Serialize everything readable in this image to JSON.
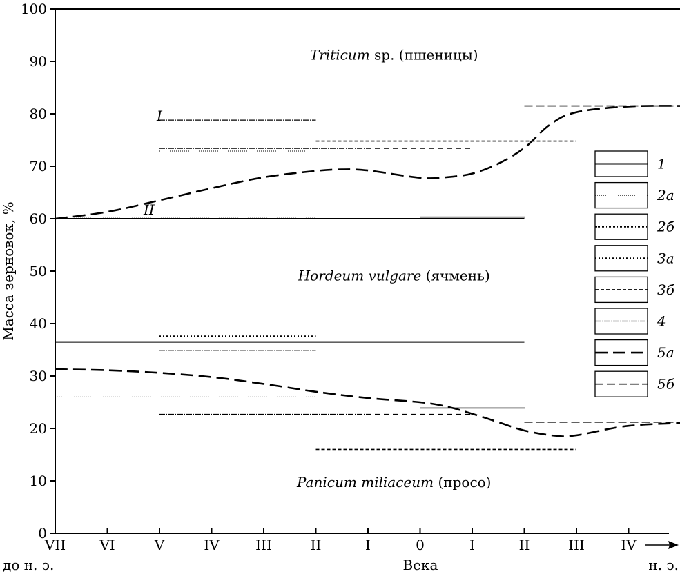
{
  "chart_data": {
    "type": "line",
    "ylabel": "Масса зерновок, %",
    "xlabel": "Века",
    "ylim": [
      0,
      100
    ],
    "y_ticks": [
      0,
      10,
      20,
      30,
      40,
      50,
      60,
      70,
      80,
      90,
      100
    ],
    "x_ticks": [
      "VII",
      "VI",
      "V",
      "IV",
      "III",
      "II",
      "I",
      "0",
      "I",
      "II",
      "III",
      "IV"
    ],
    "x_era_labels": {
      "bc": "до н. э.",
      "ad": "н. э."
    },
    "zone_labels": [
      {
        "italic": "Triticum",
        "plain": " sp. (пшеницы)",
        "x": 6.5,
        "y": 90.3
      },
      {
        "italic": "Hordeum vulgare",
        "plain": " (ячмень)",
        "x": 6.5,
        "y": 48.2
      },
      {
        "italic": "Panicum miliaceum",
        "plain": " (просо)",
        "x": 6.5,
        "y": 8.8
      }
    ],
    "curve_labels": [
      {
        "text": "I",
        "x": 2.0,
        "y": 78.7
      },
      {
        "text": "II",
        "x": 1.8,
        "y": 60.8
      }
    ],
    "curves": [
      {
        "style": "5a",
        "points": [
          [
            0,
            60
          ],
          [
            1,
            61.3
          ],
          [
            2,
            63.5
          ],
          [
            3,
            65.8
          ],
          [
            4,
            67.9
          ],
          [
            5,
            69.1
          ],
          [
            5.5,
            69.4
          ],
          [
            6,
            69.2
          ],
          [
            7,
            67.8
          ],
          [
            7.5,
            67.9
          ],
          [
            8,
            68.6
          ],
          [
            8.5,
            70.5
          ],
          [
            9,
            73.5
          ],
          [
            9.5,
            78
          ],
          [
            10,
            80.3
          ],
          [
            11,
            81.4
          ],
          [
            12.2,
            81.5
          ]
        ]
      },
      {
        "style": "5a",
        "points": [
          [
            0,
            31.3
          ],
          [
            1,
            31.1
          ],
          [
            2,
            30.6
          ],
          [
            3,
            29.8
          ],
          [
            4,
            28.5
          ],
          [
            5,
            27.0
          ],
          [
            6,
            25.8
          ],
          [
            7,
            25.0
          ],
          [
            7.5,
            24.2
          ],
          [
            8,
            22.8
          ],
          [
            8.5,
            21.2
          ],
          [
            9,
            19.6
          ],
          [
            9.6,
            18.6
          ],
          [
            10,
            18.7
          ],
          [
            11,
            20.5
          ],
          [
            12.2,
            21.1
          ]
        ]
      }
    ],
    "segments": [
      {
        "style": "4",
        "x1": 2,
        "x2": 5,
        "y": 78.8
      },
      {
        "style": "4",
        "x1": 2,
        "x2": 8,
        "y": 73.4
      },
      {
        "style": "2a",
        "x1": 2,
        "x2": 5,
        "y": 72.9
      },
      {
        "style": "3b",
        "x1": 5,
        "x2": 10,
        "y": 74.8
      },
      {
        "style": "2a",
        "x1": 0,
        "x2": 5,
        "y": 60.1
      },
      {
        "style": "2b",
        "x1": 7,
        "x2": 9,
        "y": 60.3
      },
      {
        "style": "1",
        "x1": 0,
        "x2": 9,
        "y": 60
      },
      {
        "style": "3a",
        "x1": 2,
        "x2": 5,
        "y": 37.6
      },
      {
        "style": "1",
        "x1": 0,
        "x2": 9,
        "y": 36.5
      },
      {
        "style": "4",
        "x1": 2,
        "x2": 5,
        "y": 34.9
      },
      {
        "style": "2a",
        "x1": 0,
        "x2": 5,
        "y": 26.0
      },
      {
        "style": "2b",
        "x1": 7,
        "x2": 9,
        "y": 23.9
      },
      {
        "style": "4",
        "x1": 2,
        "x2": 8,
        "y": 22.7
      },
      {
        "style": "3b",
        "x1": 5,
        "x2": 10,
        "y": 16.0
      },
      {
        "style": "5b",
        "x1": 9,
        "x2": 12.2,
        "y": 81.5
      },
      {
        "style": "5b",
        "x1": 9,
        "x2": 12.2,
        "y": 21.2
      }
    ],
    "legend": {
      "placement": "right",
      "items": [
        {
          "label": "1",
          "style": "1"
        },
        {
          "label": "2а",
          "style": "2a"
        },
        {
          "label": "2б",
          "style": "2b"
        },
        {
          "label": "3а",
          "style": "3a"
        },
        {
          "label": "3б",
          "style": "3b"
        },
        {
          "label": "4",
          "style": "4"
        },
        {
          "label": "5а",
          "style": "5a"
        },
        {
          "label": "5б",
          "style": "5b"
        }
      ]
    },
    "line_styles": {
      "1": {
        "dash": "",
        "width": 2
      },
      "2a": {
        "dash": "1 2",
        "width": 1
      },
      "2b": {
        "dash": "1 1",
        "width": 2
      },
      "3a": {
        "dash": "2 3",
        "width": 2
      },
      "3b": {
        "dash": "5 3",
        "width": 1.6
      },
      "4": {
        "dash": "8 2 1 2",
        "width": 1.2
      },
      "5a": {
        "dash": "18 8",
        "width": 2.6
      },
      "5b": {
        "dash": "12 5",
        "width": 1.6
      }
    }
  }
}
